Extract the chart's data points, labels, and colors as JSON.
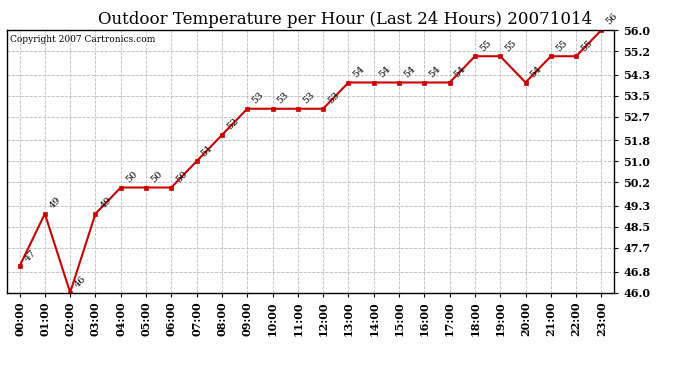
{
  "title": "Outdoor Temperature per Hour (Last 24 Hours) 20071014",
  "copyright_text": "Copyright 2007 Cartronics.com",
  "hours": [
    "00:00",
    "01:00",
    "02:00",
    "03:00",
    "04:00",
    "05:00",
    "06:00",
    "07:00",
    "08:00",
    "09:00",
    "10:00",
    "11:00",
    "12:00",
    "13:00",
    "14:00",
    "15:00",
    "16:00",
    "17:00",
    "18:00",
    "19:00",
    "20:00",
    "21:00",
    "22:00",
    "23:00"
  ],
  "temps": [
    47,
    49,
    46,
    49,
    50,
    50,
    50,
    51,
    52,
    53,
    53,
    53,
    53,
    54,
    54,
    54,
    54,
    54,
    55,
    55,
    54,
    55,
    55,
    56
  ],
  "ylim_min": 46.0,
  "ylim_max": 56.0,
  "yticks": [
    46.0,
    46.8,
    47.7,
    48.5,
    49.3,
    50.2,
    51.0,
    51.8,
    52.7,
    53.5,
    54.3,
    55.2,
    56.0
  ],
  "line_color": "#cc0000",
  "marker_color": "#cc0000",
  "bg_color": "#ffffff",
  "grid_color": "#bbbbbb",
  "title_fontsize": 12,
  "tick_fontsize": 8,
  "annotation_fontsize": 7,
  "copyright_fontsize": 6.5
}
